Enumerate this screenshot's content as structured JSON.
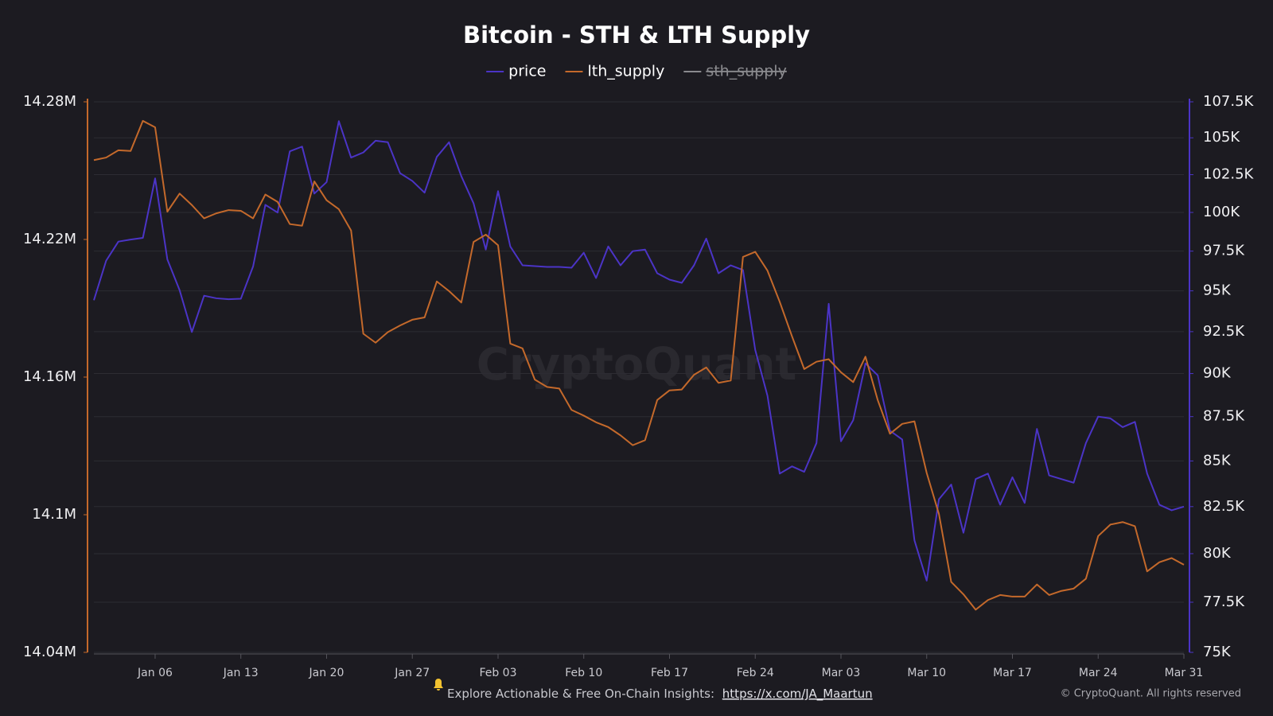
{
  "chart_data": {
    "type": "line",
    "title": "Bitcoin - STH & LTH Supply",
    "watermark": "CryptoQuant",
    "footer": {
      "text": "Explore Actionable & Free On-Chain Insights:",
      "link": "https://x.com/JA_Maartun"
    },
    "copyright": "© CryptoQuant. All rights reserved",
    "grid": true,
    "legend": "top",
    "y2log": true,
    "x": [
      "Jan 01",
      "Jan 02",
      "Jan 03",
      "Jan 04",
      "Jan 05",
      "Jan 06",
      "Jan 07",
      "Jan 08",
      "Jan 09",
      "Jan 10",
      "Jan 11",
      "Jan 12",
      "Jan 13",
      "Jan 14",
      "Jan 15",
      "Jan 16",
      "Jan 17",
      "Jan 18",
      "Jan 19",
      "Jan 20",
      "Jan 21",
      "Jan 22",
      "Jan 23",
      "Jan 24",
      "Jan 25",
      "Jan 26",
      "Jan 27",
      "Jan 28",
      "Jan 29",
      "Jan 30",
      "Jan 31",
      "Feb 01",
      "Feb 02",
      "Feb 03",
      "Feb 04",
      "Feb 05",
      "Feb 06",
      "Feb 07",
      "Feb 08",
      "Feb 09",
      "Feb 10",
      "Feb 11",
      "Feb 12",
      "Feb 13",
      "Feb 14",
      "Feb 15",
      "Feb 16",
      "Feb 17",
      "Feb 18",
      "Feb 19",
      "Feb 20",
      "Feb 21",
      "Feb 22",
      "Feb 23",
      "Feb 24",
      "Feb 25",
      "Feb 26",
      "Feb 27",
      "Feb 28",
      "Mar 01",
      "Mar 02",
      "Mar 03",
      "Mar 04",
      "Mar 05",
      "Mar 06",
      "Mar 07",
      "Mar 08",
      "Mar 09",
      "Mar 10",
      "Mar 11",
      "Mar 12",
      "Mar 13",
      "Mar 14",
      "Mar 15",
      "Mar 16",
      "Mar 17",
      "Mar 18",
      "Mar 19",
      "Mar 20",
      "Mar 21",
      "Mar 22",
      "Mar 23",
      "Mar 24",
      "Mar 25",
      "Mar 26",
      "Mar 27",
      "Mar 28",
      "Mar 29",
      "Mar 30",
      "Mar 31"
    ],
    "xticks": [
      "Jan 06",
      "Jan 13",
      "Jan 20",
      "Jan 27",
      "Feb 03",
      "Feb 10",
      "Feb 17",
      "Feb 24",
      "Mar 03",
      "Mar 10",
      "Mar 17",
      "Mar 24",
      "Mar 31"
    ],
    "ylim": [
      14040000,
      14280000
    ],
    "yticks": [
      {
        "value": 14040000,
        "label": "14.04M"
      },
      {
        "value": 14100000,
        "label": "14.1M"
      },
      {
        "value": 14160000,
        "label": "14.16M"
      },
      {
        "value": 14220000,
        "label": "14.22M"
      },
      {
        "value": 14280000,
        "label": "14.28M"
      }
    ],
    "y2lim": [
      75000,
      107500
    ],
    "y2ticks": [
      {
        "value": 75000,
        "label": "75K"
      },
      {
        "value": 77500,
        "label": "77.5K"
      },
      {
        "value": 80000,
        "label": "80K"
      },
      {
        "value": 82500,
        "label": "82.5K"
      },
      {
        "value": 85000,
        "label": "85K"
      },
      {
        "value": 87500,
        "label": "87.5K"
      },
      {
        "value": 90000,
        "label": "90K"
      },
      {
        "value": 92500,
        "label": "92.5K"
      },
      {
        "value": 95000,
        "label": "95K"
      },
      {
        "value": 97500,
        "label": "97.5K"
      },
      {
        "value": 100000,
        "label": "100K"
      },
      {
        "value": 102500,
        "label": "102.5K"
      },
      {
        "value": 105000,
        "label": "105K"
      },
      {
        "value": 107500,
        "label": "107.5K"
      }
    ],
    "series": [
      {
        "name": "price",
        "color": "#4b34c6",
        "axis": "y2",
        "visible": true,
        "values": [
          94420,
          96890,
          98110,
          98240,
          98350,
          102250,
          96970,
          95040,
          92480,
          94700,
          94540,
          94480,
          94510,
          96530,
          100500,
          99990,
          104080,
          104400,
          101240,
          102000,
          106150,
          103650,
          104000,
          104800,
          104700,
          102600,
          102080,
          101300,
          103700,
          104700,
          102400,
          100600,
          97600,
          101400,
          97800,
          96600,
          96550,
          96500,
          96500,
          96450,
          97400,
          95800,
          97800,
          96600,
          97500,
          97600,
          96100,
          95700,
          95500,
          96600,
          98300,
          96100,
          96600,
          96300,
          91400,
          88700,
          84300,
          84700,
          84400,
          86000,
          94200,
          86100,
          87300,
          90600,
          89900,
          86700,
          86200,
          80700,
          78600,
          82900,
          83700,
          81100,
          84000,
          84300,
          82600,
          84100,
          82700,
          86800,
          84200,
          84000,
          83800,
          86000,
          87500,
          87400,
          86900,
          87200,
          84300,
          82600,
          82300,
          82500
        ]
      },
      {
        "name": "lth_supply",
        "color": "#c4692b",
        "axis": "y",
        "visible": true,
        "values": [
          14254600,
          14255700,
          14258900,
          14258600,
          14271700,
          14268900,
          14232100,
          14240000,
          14235000,
          14229200,
          14231400,
          14232800,
          14232500,
          14229200,
          14239600,
          14236400,
          14226700,
          14226000,
          14245300,
          14237100,
          14233200,
          14223900,
          14178900,
          14175000,
          14179600,
          14182500,
          14185000,
          14186000,
          14201700,
          14197500,
          14192500,
          14218900,
          14222100,
          14217500,
          14174600,
          14172500,
          14158900,
          14155700,
          14155000,
          14145700,
          14143200,
          14140300,
          14138200,
          14134600,
          14130300,
          14132500,
          14150000,
          14154200,
          14154600,
          14161000,
          14164200,
          14157500,
          14158500,
          14212400,
          14214600,
          14206400,
          14192800,
          14177800,
          14163500,
          14166700,
          14167800,
          14162100,
          14157800,
          14168900,
          14150000,
          14135300,
          14139600,
          14140700,
          14118200,
          14100300,
          14070700,
          14065300,
          14058600,
          14062800,
          14065000,
          14064300,
          14064300,
          14069600,
          14065000,
          14066800,
          14067800,
          14072100,
          14090700,
          14095700,
          14096800,
          14095000,
          14075300,
          14079300,
          14081100,
          14078200
        ]
      },
      {
        "name": "sth_supply",
        "color": "#8a8a8e",
        "axis": "y",
        "visible": false,
        "values": [
          null,
          null,
          null,
          null,
          null,
          null,
          null,
          null,
          null,
          null,
          null,
          null,
          null,
          null,
          null,
          null,
          null,
          null,
          null,
          null,
          null,
          null,
          null,
          null,
          null,
          null,
          null,
          null,
          null,
          null,
          null,
          null,
          null,
          null,
          null,
          null,
          null,
          null,
          null,
          null,
          null,
          null,
          null,
          null,
          null,
          null,
          null,
          null,
          null,
          null,
          null,
          null,
          null,
          null,
          null,
          null,
          null,
          null,
          null,
          null,
          null,
          null,
          null,
          null,
          null,
          null,
          null,
          null,
          null,
          null,
          null,
          null,
          null,
          null,
          null,
          null,
          null,
          null,
          null,
          null,
          null,
          null,
          null,
          null,
          null,
          null,
          null,
          null,
          null,
          null
        ]
      }
    ]
  }
}
